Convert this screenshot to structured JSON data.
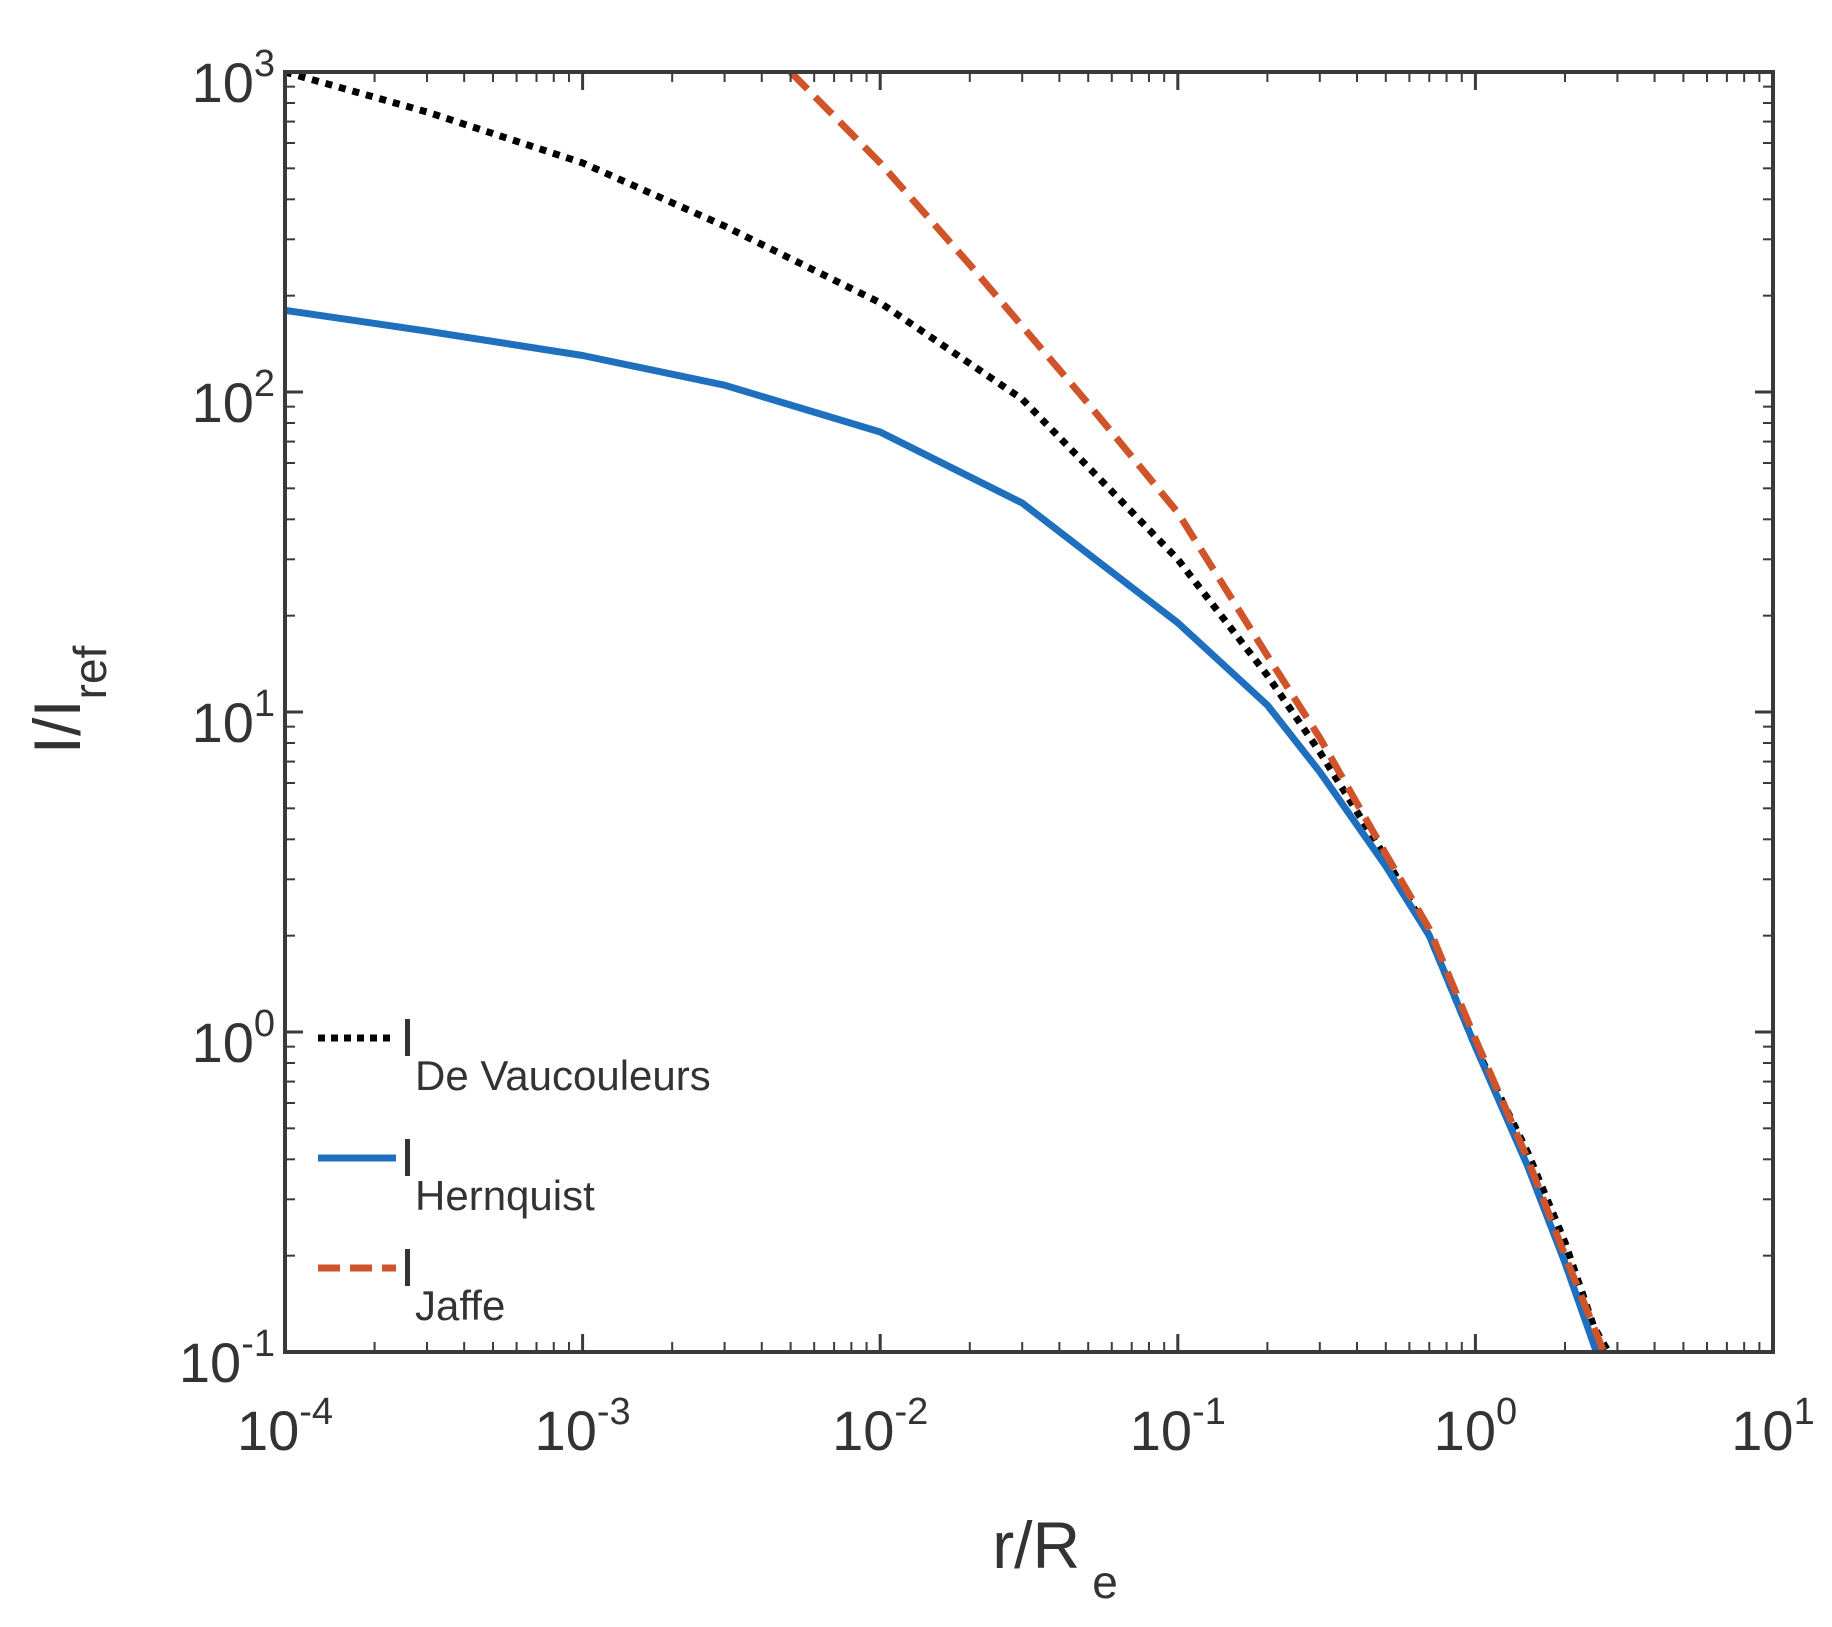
{
  "chart_data": {
    "type": "line",
    "title": "",
    "xlabel": {
      "main": "r/R",
      "sub": "e"
    },
    "ylabel": {
      "main": "I/I",
      "sub": "ref"
    },
    "xscale": "log",
    "yscale": "log",
    "xlim": [
      0.0001,
      10
    ],
    "ylim": [
      0.1,
      1000
    ],
    "grid": false,
    "legend_position": "bottom-left",
    "x_ticks": [
      {
        "base": "10",
        "exp": "-4",
        "value": 0.0001
      },
      {
        "base": "10",
        "exp": "-3",
        "value": 0.001
      },
      {
        "base": "10",
        "exp": "-2",
        "value": 0.01
      },
      {
        "base": "10",
        "exp": "-1",
        "value": 0.1
      },
      {
        "base": "10",
        "exp": "0",
        "value": 1
      },
      {
        "base": "10",
        "exp": "1",
        "value": 10
      }
    ],
    "y_ticks": [
      {
        "base": "10",
        "exp": "-1",
        "value": 0.1
      },
      {
        "base": "10",
        "exp": "0",
        "value": 1
      },
      {
        "base": "10",
        "exp": "1",
        "value": 10
      },
      {
        "base": "10",
        "exp": "2",
        "value": 100
      },
      {
        "base": "10",
        "exp": "3",
        "value": 1000
      }
    ],
    "series": [
      {
        "name": "I",
        "name_sub": "De Vaucouleurs",
        "color": "#000000",
        "style": "dotted",
        "x": [
          0.0001,
          0.0003,
          0.001,
          0.003,
          0.01,
          0.03,
          0.1,
          0.2,
          0.3,
          0.5,
          0.7,
          1.0,
          1.5,
          2.0,
          2.5,
          2.8
        ],
        "y": [
          1000,
          750,
          520,
          330,
          190,
          95,
          30,
          13,
          7.5,
          3.5,
          2.0,
          0.9,
          0.42,
          0.22,
          0.12,
          0.1
        ]
      },
      {
        "name": "I",
        "name_sub": "Hernquist",
        "color": "#1f6fbf",
        "style": "solid",
        "x": [
          0.0001,
          0.0003,
          0.001,
          0.003,
          0.01,
          0.03,
          0.1,
          0.2,
          0.3,
          0.5,
          0.7,
          1.0,
          1.5,
          2.0,
          2.55
        ],
        "y": [
          180,
          155,
          130,
          105,
          75,
          45,
          19,
          10.5,
          6.5,
          3.3,
          2.0,
          0.9,
          0.38,
          0.19,
          0.1
        ]
      },
      {
        "name": "I",
        "name_sub": "Jaffe",
        "color": "#d0542a",
        "style": "dashed",
        "x": [
          0.005,
          0.01,
          0.02,
          0.05,
          0.1,
          0.2,
          0.3,
          0.5,
          0.7,
          1.0,
          1.5,
          2.0,
          2.7
        ],
        "y": [
          1000,
          520,
          250,
          92,
          42,
          15,
          8.3,
          3.6,
          2.1,
          0.95,
          0.4,
          0.2,
          0.1
        ]
      }
    ]
  }
}
